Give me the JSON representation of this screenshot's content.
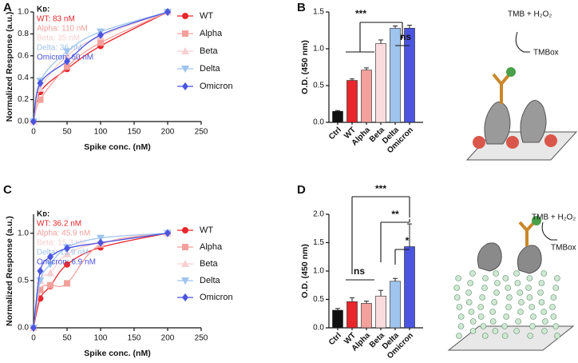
{
  "figure": {
    "panel_labels": [
      "A",
      "B",
      "C",
      "D"
    ],
    "schematics": [
      {
        "reagent": "TMB + H₂O₂",
        "product": "TMBox"
      },
      {
        "reagent": "TMB + H₂O₂",
        "product": "TMBox"
      }
    ]
  },
  "chart_data": [
    {
      "type": "line",
      "xlabel": "Spike conc. (nM)",
      "ylabel": "Normalized Response (a.u.)",
      "kd_title": "Kᴅ:",
      "x": [
        0,
        10,
        50,
        100,
        200
      ],
      "xlim": [
        0,
        250
      ],
      "xticks": [
        0,
        50,
        100,
        150,
        200,
        250
      ],
      "ylim": [
        0,
        1.0
      ],
      "yticks": [
        {
          "value": 0,
          "label": "0.0"
        },
        0.2,
        0.4,
        0.6,
        0.8,
        {
          "value": 1,
          "label": "1.0"
        }
      ],
      "series": [
        {
          "name": "WT",
          "kd_label": "WT: 83 nM",
          "color": "#e8262b",
          "marker": "circle",
          "values": [
            0,
            0.27,
            0.48,
            0.69,
            1.0
          ]
        },
        {
          "name": "Alpha",
          "kd_label": "Alpha: 110 nM",
          "color": "#f4a09c",
          "marker": "square",
          "values": [
            0,
            0.2,
            0.5,
            0.72,
            1.0
          ]
        },
        {
          "name": "Beta",
          "kd_label": "Beta: 35 nM",
          "color": "#f9cfd2",
          "marker": "triangle-up",
          "values": [
            0,
            0.3,
            0.6,
            0.78,
            1.0
          ]
        },
        {
          "name": "Delta",
          "kd_label": "Delta: 36 nM",
          "color": "#9fc4ee",
          "marker": "triangle-down",
          "values": [
            0,
            0.37,
            0.64,
            0.82,
            1.0
          ]
        },
        {
          "name": "Omicron",
          "kd_label": "Omicron: 60 nM",
          "color": "#4b55e0",
          "marker": "diamond",
          "values": [
            0,
            0.35,
            0.55,
            0.79,
            1.0
          ]
        }
      ]
    },
    {
      "type": "bar",
      "ylabel": "O.D. (450 nm)",
      "categories": [
        "Ctrl",
        "WT",
        "Alpha",
        "Beta",
        "Delta",
        "Omicron"
      ],
      "values": [
        0.15,
        0.57,
        0.71,
        1.07,
        1.28,
        1.28
      ],
      "errors": [
        0.01,
        0.02,
        0.03,
        0.05,
        0.03,
        0.04
      ],
      "colors": [
        "#111111",
        "#e8262b",
        "#f4a09c",
        "#fbdcde",
        "#9fc4ee",
        "#4b55e0"
      ],
      "ylim": [
        0,
        1.5
      ],
      "yticks": [
        {
          "value": 0,
          "label": "0.0"
        },
        0.5,
        {
          "value": 1,
          "label": "1.0"
        },
        1.5
      ],
      "annotations": [
        "***",
        "ns"
      ]
    },
    {
      "type": "line",
      "xlabel": "Spike conc. (nM)",
      "ylabel": "Normalized Response (a.u.)",
      "kd_title": "Kᴅ:",
      "x": [
        0,
        10,
        25,
        50,
        100,
        200
      ],
      "xlim": [
        0,
        250
      ],
      "xticks": [
        0,
        50,
        100,
        150,
        200,
        250
      ],
      "ylim": [
        0,
        1.2
      ],
      "yticks": [
        {
          "value": 0,
          "label": "0.0"
        },
        0.5,
        {
          "value": 1,
          "label": "1.0"
        }
      ],
      "series": [
        {
          "name": "WT",
          "kd_label": "WT: 36.2 nM",
          "color": "#e8262b",
          "marker": "circle",
          "values": [
            0,
            0.31,
            0.44,
            0.67,
            0.85,
            1.0
          ]
        },
        {
          "name": "Alpha",
          "kd_label": "Alpha: 45.9 nM",
          "color": "#f4a09c",
          "marker": "square",
          "values": [
            0,
            0.4,
            0.45,
            0.47,
            0.88,
            1.0
          ]
        },
        {
          "name": "Beta",
          "kd_label": "Beta: 15.3 nM",
          "color": "#f9cfd2",
          "marker": "triangle-up",
          "values": [
            0,
            0.5,
            0.58,
            0.78,
            0.9,
            1.0
          ]
        },
        {
          "name": "Delta",
          "kd_label": "Delta: 15.9 nM",
          "color": "#9fc4ee",
          "marker": "triangle-down",
          "values": [
            0,
            0.5,
            0.67,
            0.85,
            0.95,
            1.0
          ]
        },
        {
          "name": "Omicron",
          "kd_label": "Omicron: 6.9 nM",
          "color": "#4b55e0",
          "marker": "diamond",
          "values": [
            0,
            0.6,
            0.75,
            0.84,
            0.9,
            1.0
          ]
        }
      ]
    },
    {
      "type": "bar",
      "ylabel": "O.D. (450 nm)",
      "categories": [
        "Ctrl",
        "WT",
        "Alpha",
        "Beta",
        "Delta",
        "Omicron"
      ],
      "values": [
        0.31,
        0.46,
        0.43,
        0.56,
        0.82,
        1.43
      ],
      "errors": [
        0.03,
        0.07,
        0.04,
        0.1,
        0.05,
        0.4
      ],
      "colors": [
        "#111111",
        "#e8262b",
        "#f4a09c",
        "#fbdcde",
        "#9fc4ee",
        "#4b55e0"
      ],
      "ylim": [
        0,
        2.0
      ],
      "yticks": [
        {
          "value": 0,
          "label": "0.0"
        },
        0.5,
        {
          "value": 1,
          "label": "1.0"
        },
        1.5,
        {
          "value": 2,
          "label": "2.0"
        }
      ],
      "annotations": [
        "***",
        "**",
        "*",
        "ns"
      ]
    }
  ]
}
